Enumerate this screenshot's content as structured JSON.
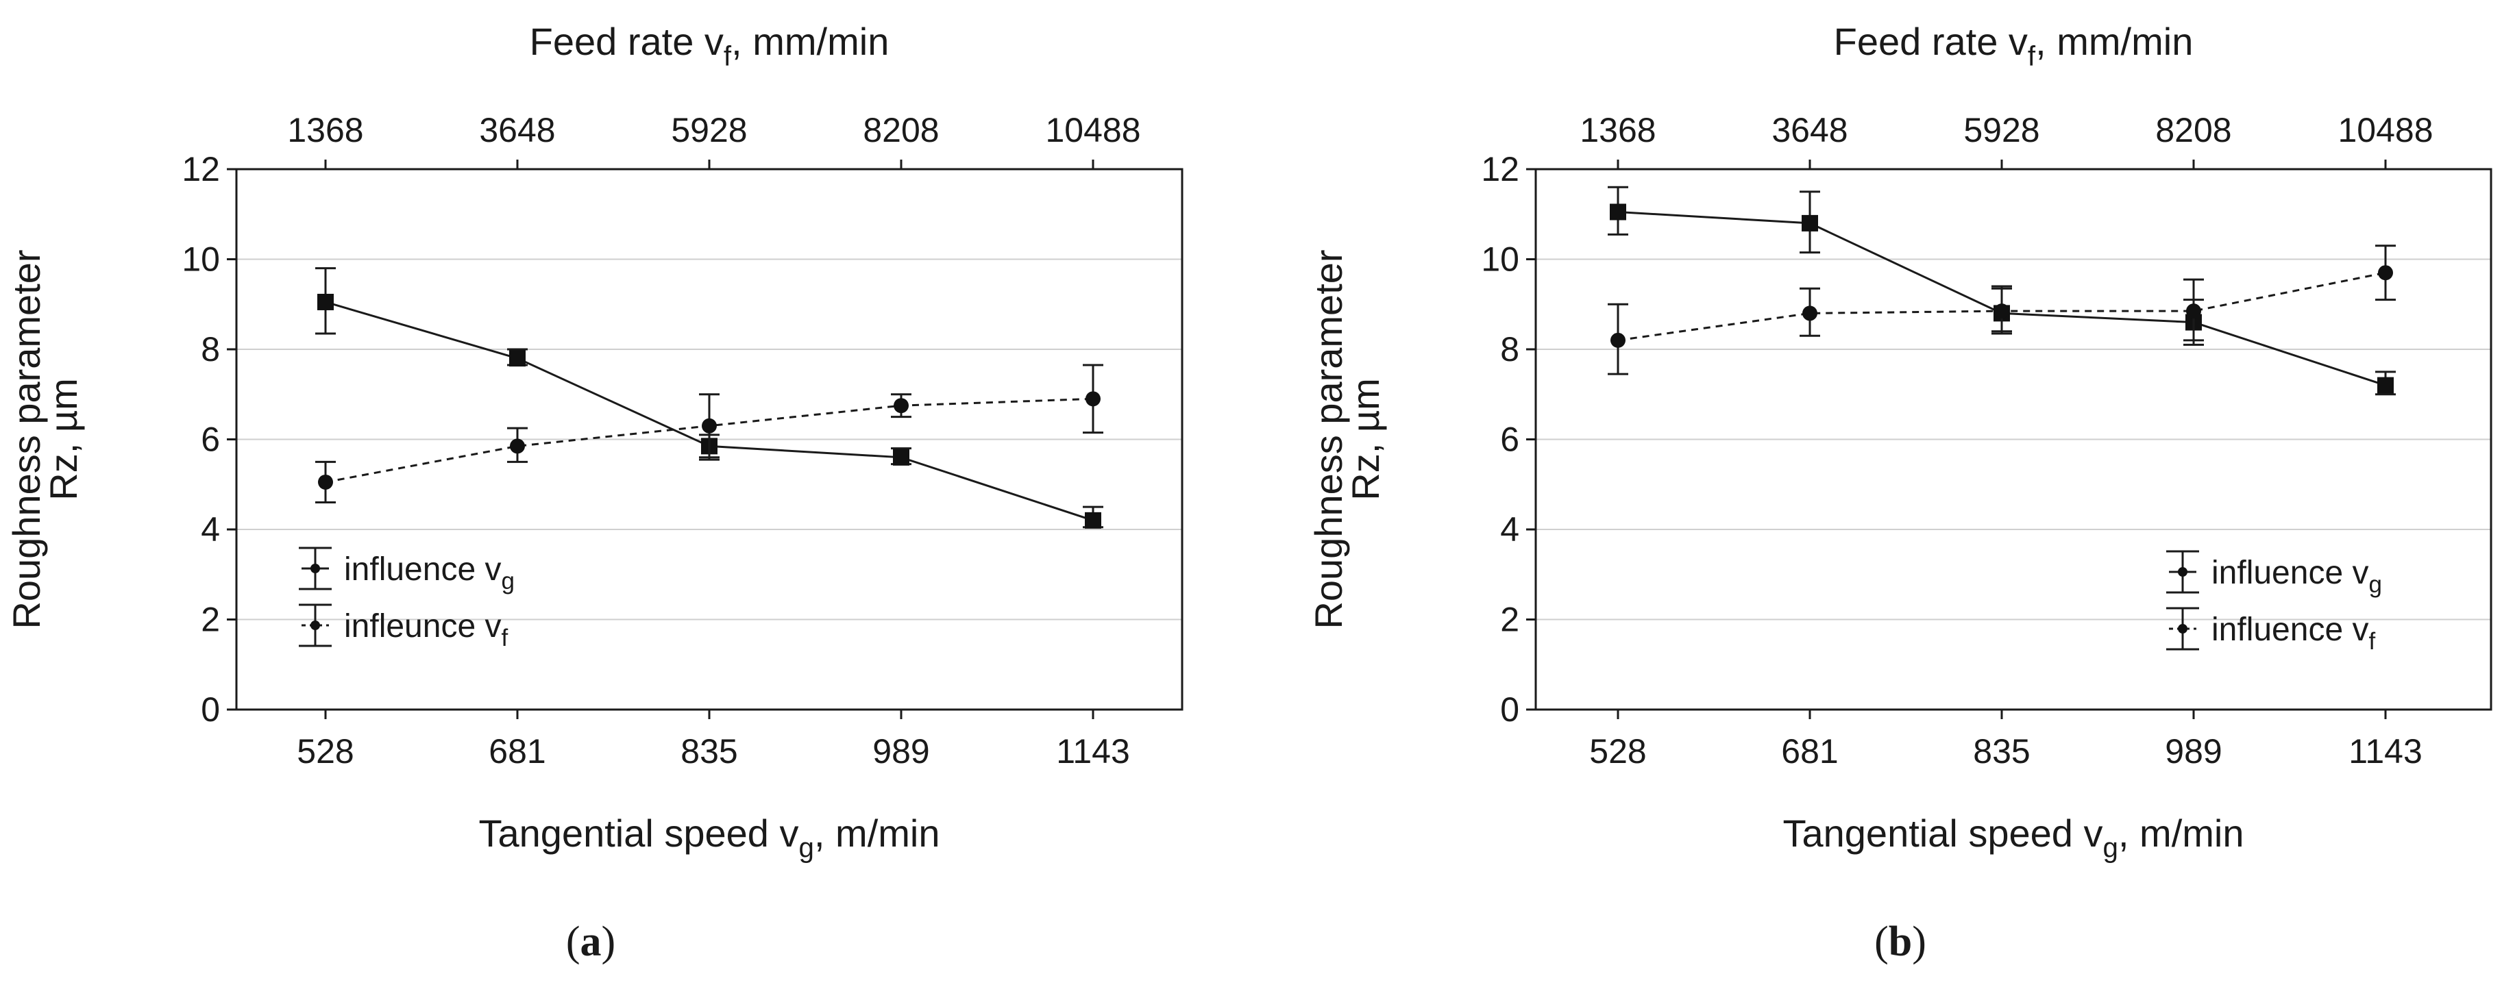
{
  "figure": {
    "panels": [
      {
        "caption_open": "(",
        "caption_letter": "a",
        "caption_close": ")"
      },
      {
        "caption_open": "(",
        "caption_letter": "b",
        "caption_close": ")"
      }
    ]
  },
  "chart_data": [
    {
      "type": "line",
      "panel": "a",
      "title": "",
      "top_axis_label": "Feed rate v",
      "top_axis_label_sub": "f",
      "top_axis_label_unit": ", mm/min",
      "top_ticks": [
        "1368",
        "3648",
        "5928",
        "8208",
        "10488"
      ],
      "xlabel": "Tangential speed v",
      "xlabel_sub": "g",
      "xlabel_unit": ", m/min",
      "ylabel_line1": "Roughness parameter",
      "ylabel_line2": "Rz, µm",
      "categories": [
        "528",
        "681",
        "835",
        "989",
        "1143"
      ],
      "ylim": [
        0,
        12
      ],
      "yticks": [
        "0",
        "2",
        "4",
        "6",
        "8",
        "10",
        "12"
      ],
      "grid": true,
      "legend_position": "lower-left",
      "series": [
        {
          "name": "influence v",
          "name_sub": "g",
          "marker": "square",
          "line": "solid",
          "values": [
            9.05,
            7.8,
            5.85,
            5.6,
            4.2
          ],
          "err_low": [
            8.35,
            7.65,
            5.55,
            5.45,
            4.05
          ],
          "err_high": [
            9.8,
            8.0,
            6.1,
            5.8,
            4.5
          ]
        },
        {
          "name": "infleunce v",
          "name_sub": "f",
          "marker": "circle",
          "line": "dashed",
          "values": [
            5.05,
            5.85,
            6.3,
            6.75,
            6.9
          ],
          "err_low": [
            4.6,
            5.5,
            5.6,
            6.5,
            6.15
          ],
          "err_high": [
            5.5,
            6.25,
            7.0,
            7.0,
            7.65
          ]
        }
      ]
    },
    {
      "type": "line",
      "panel": "b",
      "title": "",
      "top_axis_label": "Feed rate v",
      "top_axis_label_sub": "f",
      "top_axis_label_unit": ", mm/min",
      "top_ticks": [
        "1368",
        "3648",
        "5928",
        "8208",
        "10488"
      ],
      "xlabel": "Tangential speed v",
      "xlabel_sub": "g",
      "xlabel_unit": ", m/min",
      "ylabel_line1": "Roughness parameter",
      "ylabel_line2": "Rz, µm",
      "categories": [
        "528",
        "681",
        "835",
        "989",
        "1143"
      ],
      "ylim": [
        0,
        12
      ],
      "yticks": [
        "0",
        "2",
        "4",
        "6",
        "8",
        "10",
        "12"
      ],
      "grid": true,
      "legend_position": "lower-right",
      "series": [
        {
          "name": "influence v",
          "name_sub": "g",
          "marker": "square",
          "line": "solid",
          "values": [
            11.05,
            10.8,
            8.8,
            8.6,
            7.2
          ],
          "err_low": [
            10.55,
            10.15,
            8.35,
            8.1,
            7.0
          ],
          "err_high": [
            11.6,
            11.5,
            9.35,
            9.1,
            7.5
          ]
        },
        {
          "name": "influence v",
          "name_sub": "f",
          "marker": "circle",
          "line": "dashed",
          "values": [
            8.2,
            8.8,
            8.85,
            8.85,
            9.7
          ],
          "err_low": [
            7.45,
            8.3,
            8.4,
            8.2,
            9.1
          ],
          "err_high": [
            9.0,
            9.35,
            9.4,
            9.55,
            10.3
          ]
        }
      ]
    }
  ]
}
